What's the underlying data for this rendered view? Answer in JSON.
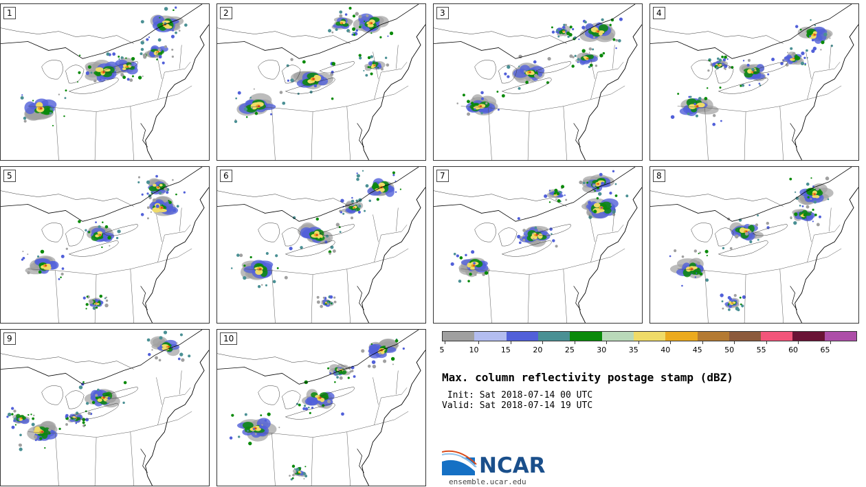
{
  "title": "Max. column reflectivity postage stamp (dBZ)",
  "init_line": " Init: Sat 2018-07-14 00 UTC",
  "valid_line": "Valid: Sat 2018-07-14 19 UTC",
  "logo_text": "NCAR",
  "url": "ensemble.ucar.edu",
  "panels": [
    {
      "label": "1"
    },
    {
      "label": "2"
    },
    {
      "label": "3"
    },
    {
      "label": "4"
    },
    {
      "label": "5"
    },
    {
      "label": "6"
    },
    {
      "label": "7"
    },
    {
      "label": "8"
    },
    {
      "label": "9"
    },
    {
      "label": "10"
    }
  ],
  "colorbar": {
    "ticks": [
      "5",
      "10",
      "15",
      "20",
      "25",
      "30",
      "35",
      "40",
      "45",
      "50",
      "55",
      "60",
      "65"
    ],
    "colors": [
      "#a0a0a0",
      "#b3bdf0",
      "#5160d9",
      "#4a9094",
      "#0a8a0a",
      "#b9d9b9",
      "#efdb68",
      "#ebaa1e",
      "#b47a32",
      "#8c5a3c",
      "#f2557a",
      "#6a1436",
      "#ad4ea8"
    ]
  }
}
